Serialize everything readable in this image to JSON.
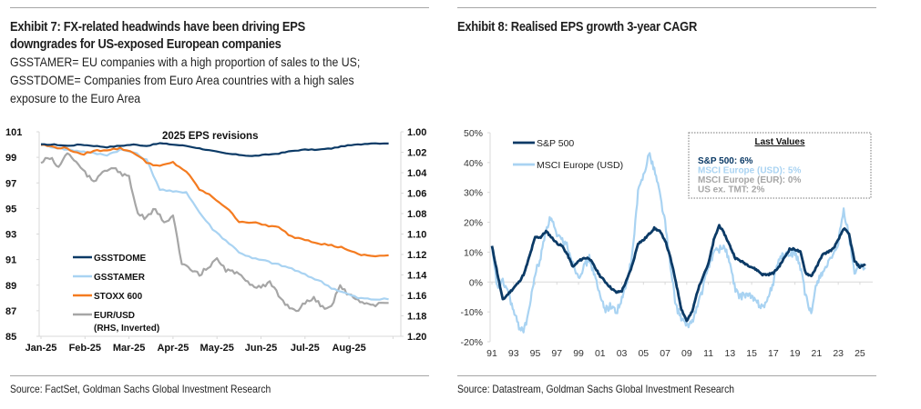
{
  "exhibit7": {
    "title_line1": "Exhibit 7: FX-related headwinds have been driving EPS",
    "title_line2": "downgrades for US-exposed European companies",
    "subtitle_line1": "GSSTAMER= EU companies with a high proportion of sales to the US;",
    "subtitle_line2": "GSSTDOME= Companies from Euro Area countries with a high sales",
    "subtitle_line3": "exposure to the Euro Area",
    "source": "Source: FactSet, Goldman Sachs Global Investment Research"
  },
  "exhibit8": {
    "title": "Exhibit 8: Realised EPS growth 3-year CAGR",
    "source": "Source: Datastream, Goldman Sachs Global Investment Research"
  },
  "chart_data": [
    {
      "type": "line",
      "title": "2025 EPS revisions",
      "xlabel": "",
      "ylabel": "",
      "x_ticks": [
        "Jan-25",
        "Feb-25",
        "Mar-25",
        "Apr-25",
        "May-25",
        "Jun-25",
        "Jul-25",
        "Aug-25"
      ],
      "x_range_months": [
        0,
        7.9
      ],
      "ylim": [
        85,
        101
      ],
      "y_ticks": [
        "101",
        "99",
        "97",
        "95",
        "93",
        "91",
        "89",
        "87",
        "85"
      ],
      "y2lim_inverted": [
        1.0,
        1.2
      ],
      "y2_ticks": [
        "1.00",
        "1.02",
        "1.04",
        "1.06",
        "1.08",
        "1.10",
        "1.12",
        "1.14",
        "1.16",
        "1.18",
        "1.20"
      ],
      "grid": false,
      "legend_position": "bottom-left",
      "series": [
        {
          "name": "GSSTDOME",
          "axis": "left",
          "color": "#0b3a66",
          "x": [
            0,
            0.3,
            0.6,
            0.9,
            1.2,
            1.5,
            1.8,
            2.1,
            2.4,
            2.7,
            3.0,
            3.3,
            3.6,
            3.9,
            4.2,
            4.5,
            4.8,
            5.1,
            5.4,
            5.7,
            6.0,
            6.3,
            6.6,
            6.9,
            7.2,
            7.5,
            7.9
          ],
          "values": [
            100.0,
            100.0,
            99.9,
            100.0,
            99.9,
            99.8,
            99.9,
            100.0,
            99.9,
            100.1,
            100.0,
            99.9,
            99.7,
            99.5,
            99.3,
            99.2,
            99.1,
            99.2,
            99.3,
            99.5,
            99.6,
            99.6,
            99.7,
            99.9,
            100.0,
            100.1,
            100.1
          ]
        },
        {
          "name": "GSSTAMER",
          "axis": "left",
          "color": "#a9d3f2",
          "x": [
            0,
            0.3,
            0.6,
            0.9,
            1.2,
            1.5,
            1.8,
            2.1,
            2.4,
            2.7,
            3.0,
            3.3,
            3.6,
            3.9,
            4.2,
            4.5,
            4.8,
            5.1,
            5.4,
            5.7,
            6.0,
            6.3,
            6.6,
            6.9,
            7.2,
            7.5,
            7.9
          ],
          "values": [
            100.0,
            99.8,
            99.6,
            99.5,
            99.3,
            99.2,
            99.6,
            99.4,
            98.8,
            96.5,
            96.3,
            96.3,
            94.7,
            93.4,
            92.5,
            91.6,
            91.1,
            90.9,
            90.6,
            90.3,
            89.8,
            89.4,
            88.8,
            88.4,
            88.0,
            87.9,
            87.9
          ]
        },
        {
          "name": "STOXX 600",
          "axis": "left",
          "color": "#f47b20",
          "x": [
            0,
            0.3,
            0.6,
            0.9,
            1.2,
            1.5,
            1.8,
            2.1,
            2.4,
            2.7,
            3.0,
            3.3,
            3.6,
            3.9,
            4.2,
            4.5,
            4.8,
            5.1,
            5.4,
            5.7,
            6.0,
            6.3,
            6.6,
            6.9,
            7.2,
            7.5,
            7.9
          ],
          "values": [
            100.0,
            99.8,
            99.7,
            99.2,
            99.5,
            99.6,
            99.7,
            99.4,
            98.6,
            98.3,
            98.6,
            97.9,
            96.5,
            95.9,
            95.1,
            94.0,
            93.9,
            93.7,
            93.5,
            92.8,
            92.6,
            92.3,
            92.1,
            91.9,
            91.4,
            91.3,
            91.3
          ]
        },
        {
          "name": "EUR/USD (RHS, Inverted)",
          "axis": "right",
          "color": "#a6a6a6",
          "x": [
            0,
            0.2,
            0.4,
            0.6,
            0.8,
            1.0,
            1.2,
            1.4,
            1.6,
            1.8,
            2.0,
            2.2,
            2.4,
            2.6,
            2.8,
            3.0,
            3.2,
            3.4,
            3.6,
            3.8,
            4.0,
            4.2,
            4.4,
            4.6,
            4.8,
            5.0,
            5.2,
            5.4,
            5.6,
            5.8,
            6.0,
            6.2,
            6.4,
            6.6,
            6.8,
            7.0,
            7.2,
            7.4,
            7.6,
            7.9
          ],
          "values": [
            1.03,
            1.025,
            1.035,
            1.02,
            1.03,
            1.04,
            1.05,
            1.038,
            1.035,
            1.04,
            1.045,
            1.08,
            1.085,
            1.075,
            1.09,
            1.08,
            1.13,
            1.135,
            1.14,
            1.132,
            1.125,
            1.135,
            1.138,
            1.142,
            1.15,
            1.152,
            1.148,
            1.16,
            1.17,
            1.175,
            1.168,
            1.162,
            1.172,
            1.17,
            1.15,
            1.16,
            1.164,
            1.168,
            1.17,
            1.166
          ]
        }
      ]
    },
    {
      "type": "line",
      "title": "",
      "xlabel": "",
      "ylabel": "",
      "x_ticks": [
        "91",
        "93",
        "95",
        "97",
        "99",
        "01",
        "03",
        "05",
        "07",
        "09",
        "11",
        "13",
        "15",
        "17",
        "19",
        "21",
        "23",
        "25"
      ],
      "x_range_years": [
        1991,
        2025.8
      ],
      "ylim": [
        -20,
        50
      ],
      "y_ticks": [
        "50%",
        "40%",
        "30%",
        "20%",
        "10%",
        "0%",
        "-10%",
        "-20%"
      ],
      "grid": false,
      "zero_line": true,
      "legend_position": "top-left",
      "series": [
        {
          "name": "S&P 500",
          "color": "#0b3a66",
          "x": [
            1991.0,
            1991.5,
            1992.0,
            1992.5,
            1993.0,
            1993.5,
            1994.0,
            1994.5,
            1995.0,
            1995.5,
            1996.0,
            1996.5,
            1997.0,
            1997.5,
            1998.0,
            1998.5,
            1999.0,
            1999.5,
            2000.0,
            2000.5,
            2001.0,
            2001.5,
            2002.0,
            2002.5,
            2003.0,
            2003.5,
            2004.0,
            2004.5,
            2005.0,
            2005.5,
            2006.0,
            2006.5,
            2007.0,
            2007.5,
            2008.0,
            2008.5,
            2009.0,
            2009.5,
            2010.0,
            2010.5,
            2011.0,
            2011.5,
            2012.0,
            2012.5,
            2013.0,
            2013.5,
            2014.0,
            2014.5,
            2015.0,
            2015.5,
            2016.0,
            2016.5,
            2017.0,
            2017.5,
            2018.0,
            2018.5,
            2019.0,
            2019.5,
            2020.0,
            2020.5,
            2021.0,
            2021.5,
            2022.0,
            2022.5,
            2023.0,
            2023.5,
            2024.0,
            2024.5,
            2025.0,
            2025.5
          ],
          "values": [
            12,
            3,
            -6,
            -4,
            -2,
            0,
            3,
            9,
            15,
            15,
            17,
            15,
            13,
            12,
            9,
            5,
            7,
            8,
            8,
            5,
            2,
            0,
            -2,
            -3.5,
            -3,
            1,
            6,
            13,
            14,
            16,
            18,
            17,
            14,
            8,
            0,
            -9,
            -13,
            -10,
            -3,
            2,
            6,
            14,
            19,
            16,
            12,
            8,
            7,
            6,
            5,
            4,
            2.5,
            2.5,
            3,
            5,
            8,
            11,
            11,
            10,
            3,
            2,
            5,
            9,
            10,
            11,
            14,
            18,
            16,
            7,
            5,
            6
          ]
        },
        {
          "name": "MSCI Europe (USD)",
          "color": "#a9d3f2",
          "x": [
            1991.0,
            1991.5,
            1992.0,
            1992.5,
            1993.0,
            1993.5,
            1994.0,
            1994.5,
            1995.0,
            1995.5,
            1996.0,
            1996.5,
            1997.0,
            1997.5,
            1998.0,
            1998.5,
            1999.0,
            1999.5,
            2000.0,
            2000.5,
            2001.0,
            2001.5,
            2002.0,
            2002.5,
            2003.0,
            2003.5,
            2004.0,
            2004.5,
            2005.0,
            2005.5,
            2006.0,
            2006.5,
            2007.0,
            2007.5,
            2008.0,
            2008.5,
            2009.0,
            2009.5,
            2010.0,
            2010.5,
            2011.0,
            2011.5,
            2012.0,
            2012.5,
            2013.0,
            2013.5,
            2014.0,
            2014.5,
            2015.0,
            2015.5,
            2016.0,
            2016.5,
            2017.0,
            2017.5,
            2018.0,
            2018.5,
            2019.0,
            2019.5,
            2020.0,
            2020.5,
            2021.0,
            2021.5,
            2022.0,
            2022.5,
            2023.0,
            2023.5,
            2024.0,
            2024.5,
            2025.0,
            2025.5
          ],
          "values": [
            11,
            -2,
            0,
            -3,
            -10,
            -15,
            -16,
            -8,
            3,
            8,
            18,
            22,
            15,
            14,
            12,
            6,
            2,
            5,
            8,
            2,
            -5,
            -9,
            -8,
            -10,
            -6,
            0,
            10,
            30,
            36,
            43,
            38,
            30,
            20,
            5,
            -8,
            -12,
            -15,
            -13,
            -8,
            -2,
            5,
            10,
            11,
            12,
            6,
            -3,
            -5,
            -4,
            -5,
            -7,
            -8,
            -6,
            0,
            8,
            9,
            9,
            10,
            5,
            -5,
            -11,
            0,
            3,
            6,
            8,
            13,
            24,
            15,
            3,
            6,
            5
          ]
        }
      ],
      "last_values_box": {
        "title": "Last Values",
        "entries": [
          {
            "label": "S&P 500: 6%",
            "color": "#0b3a66"
          },
          {
            "label": "MSCI Europe (USD): 5%",
            "color": "#a9d3f2"
          },
          {
            "label": "MSCI Europe (EUR): 0%",
            "color": "#a6a6a6"
          },
          {
            "label": "US ex. TMT: 2%",
            "color": "#a6a6a6"
          }
        ]
      }
    }
  ]
}
